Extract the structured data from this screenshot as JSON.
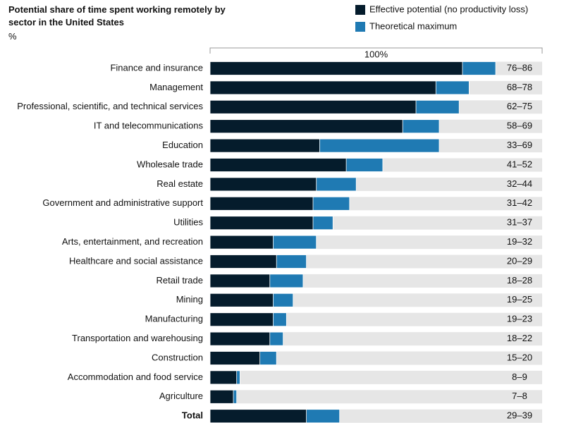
{
  "chart_data": {
    "type": "overlap-bar",
    "title": "Potential share of time spent working remotely by sector in the United States",
    "unit": "%",
    "categories": [
      "Finance and insurance",
      "Management",
      "Professional, scientific, and technical services",
      "IT and telecommunications",
      "Education",
      "Wholesale trade",
      "Real estate",
      "Government and administrative support",
      "Utilities",
      "Arts, entertainment, and recreation",
      "Healthcare and social assistance",
      "Retail trade",
      "Mining",
      "Manufacturing",
      "Transportation and warehousing",
      "Construction",
      "Accommodation and food service",
      "Agriculture",
      "Total"
    ],
    "series": [
      {
        "name": "Effective potential (no productivity loss)",
        "color": "#051c2c",
        "values": [
          76,
          68,
          62,
          58,
          33,
          41,
          32,
          31,
          31,
          19,
          20,
          18,
          19,
          19,
          18,
          15,
          8,
          7,
          29
        ]
      },
      {
        "name": "Theoretical maximum",
        "color": "#1f7ab3",
        "values": [
          86,
          78,
          75,
          69,
          69,
          52,
          44,
          42,
          37,
          32,
          29,
          28,
          25,
          23,
          22,
          20,
          9,
          8,
          39
        ]
      }
    ],
    "range_labels": [
      "76–86",
      "68–78",
      "62–75",
      "58–69",
      "33–69",
      "41–52",
      "32–44",
      "31–42",
      "31–37",
      "19–32",
      "20–29",
      "18–28",
      "19–25",
      "19–23",
      "18–22",
      "15–20",
      "8–9",
      "7–8",
      "29–39"
    ],
    "xlim": [
      0,
      100
    ],
    "xticks": [
      {
        "value": 100,
        "label": "100%"
      }
    ],
    "track_color": "#e6e6e6"
  }
}
